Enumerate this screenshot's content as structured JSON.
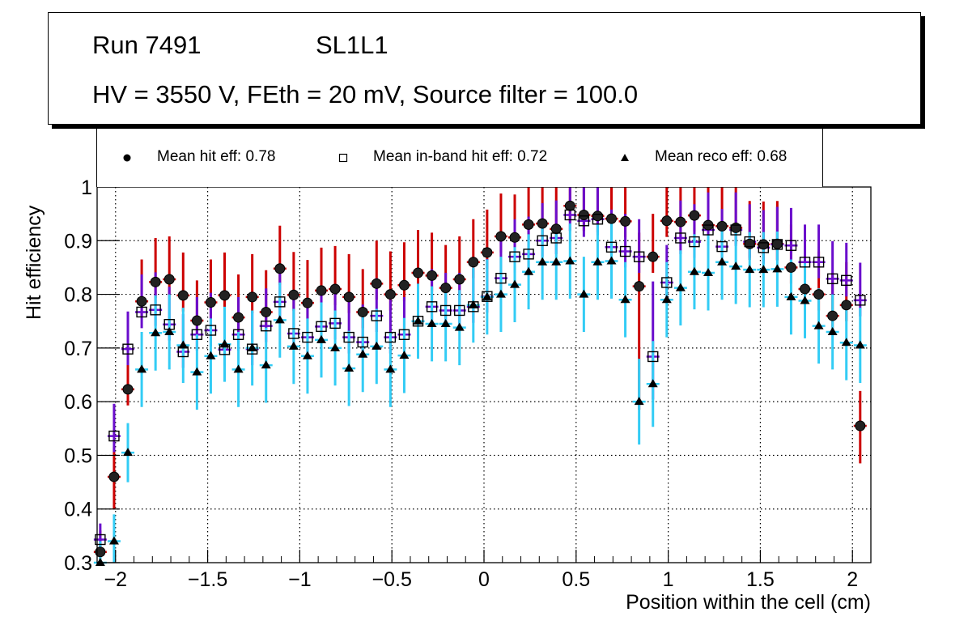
{
  "header": {
    "run": "Run 7491",
    "layer": "SL1L1",
    "conditions": "HV = 3550 V, FEth = 20 mV, Source filter = 100.0"
  },
  "legend": {
    "items": [
      {
        "label": "Mean hit  eff: 0.78",
        "marker": "filled-circle"
      },
      {
        "label": "Mean in-band hit eff: 0.72",
        "marker": "open-square"
      },
      {
        "label": "Mean reco eff: 0.68",
        "marker": "filled-triangle"
      }
    ]
  },
  "colors": {
    "hit_err": "#cc0000",
    "inband_err": "#6a0dcc",
    "reco_err": "#33ccf5",
    "marker": "#000000"
  },
  "chart_data": {
    "type": "scatter",
    "title": "",
    "xlabel": "Position within the cell (cm)",
    "ylabel": "Hit efficiency",
    "xlim": [
      -2.1,
      2.1
    ],
    "ylim": [
      0.3,
      1.0
    ],
    "grid": true,
    "legend_position": "top",
    "xticks": [
      "−2",
      "−1.5",
      "−1",
      "−0.5",
      "0",
      "0.5",
      "1",
      "1.5",
      "2"
    ],
    "xtick_values": [
      -2,
      -1.5,
      -1,
      -0.5,
      0,
      0.5,
      1,
      1.5,
      2
    ],
    "yticks": [
      "0.3",
      "0.4",
      "0.5",
      "0.6",
      "0.7",
      "0.8",
      "0.9",
      "1"
    ],
    "ytick_values": [
      0.3,
      0.4,
      0.5,
      0.6,
      0.7,
      0.8,
      0.9,
      1.0
    ],
    "x": [
      -2.083,
      -2.008,
      -1.933,
      -1.858,
      -1.783,
      -1.708,
      -1.633,
      -1.558,
      -1.483,
      -1.408,
      -1.333,
      -1.258,
      -1.183,
      -1.108,
      -1.033,
      -0.958,
      -0.883,
      -0.808,
      -0.733,
      -0.658,
      -0.583,
      -0.508,
      -0.433,
      -0.358,
      -0.283,
      -0.208,
      -0.133,
      -0.058,
      0.017,
      0.092,
      0.167,
      0.242,
      0.317,
      0.392,
      0.467,
      0.542,
      0.617,
      0.692,
      0.767,
      0.842,
      0.917,
      0.992,
      1.067,
      1.142,
      1.217,
      1.292,
      1.367,
      1.442,
      1.517,
      1.592,
      1.667,
      1.742,
      1.817,
      1.892,
      1.967,
      2.042
    ],
    "series": [
      {
        "name": "Mean hit  eff: 0.78",
        "marker": "filled-circle",
        "values": [
          0.32,
          0.46,
          0.623,
          0.787,
          0.823,
          0.828,
          0.798,
          0.751,
          0.785,
          0.798,
          0.757,
          0.795,
          0.767,
          0.848,
          0.799,
          0.784,
          0.807,
          0.81,
          0.795,
          0.767,
          0.82,
          0.8,
          0.817,
          0.84,
          0.835,
          0.812,
          0.828,
          0.86,
          0.878,
          0.908,
          0.906,
          0.93,
          0.932,
          0.922,
          0.965,
          0.948,
          0.946,
          0.941,
          0.936,
          0.815,
          0.87,
          0.937,
          0.935,
          0.947,
          0.929,
          0.927,
          0.924,
          0.894,
          0.893,
          0.894,
          0.85,
          0.81,
          0.8,
          0.76,
          0.78,
          0.555
        ],
        "err_low": [
          0.03,
          0.06,
          0.03,
          0.03,
          0.03,
          0.03,
          0.03,
          0.03,
          0.03,
          0.03,
          0.03,
          0.03,
          0.03,
          0.03,
          0.03,
          0.03,
          0.03,
          0.03,
          0.03,
          0.03,
          0.03,
          0.03,
          0.03,
          0.03,
          0.03,
          0.03,
          0.03,
          0.03,
          0.03,
          0.03,
          0.03,
          0.03,
          0.03,
          0.03,
          0.03,
          0.03,
          0.03,
          0.03,
          0.03,
          0.23,
          0.03,
          0.03,
          0.03,
          0.03,
          0.03,
          0.03,
          0.03,
          0.03,
          0.03,
          0.03,
          0.03,
          0.03,
          0.03,
          0.03,
          0.03,
          0.07
        ],
        "err_high": [
          0.04,
          0.055,
          0.06,
          0.078,
          0.082,
          0.08,
          0.08,
          0.075,
          0.08,
          0.08,
          0.08,
          0.08,
          0.078,
          0.08,
          0.08,
          0.08,
          0.08,
          0.08,
          0.08,
          0.08,
          0.08,
          0.08,
          0.08,
          0.08,
          0.08,
          0.08,
          0.08,
          0.08,
          0.08,
          0.08,
          0.08,
          0.08,
          0.08,
          0.08,
          0.08,
          0.08,
          0.08,
          0.08,
          0.08,
          0.1,
          0.08,
          0.08,
          0.08,
          0.08,
          0.08,
          0.08,
          0.08,
          0.08,
          0.08,
          0.08,
          0.08,
          0.08,
          0.08,
          0.08,
          0.08,
          0.065
        ]
      },
      {
        "name": "Mean in-band hit eff: 0.72",
        "marker": "open-square",
        "values": [
          0.343,
          0.536,
          0.698,
          0.767,
          0.771,
          0.744,
          0.693,
          0.725,
          0.733,
          0.697,
          0.725,
          0.698,
          0.741,
          0.786,
          0.727,
          0.72,
          0.74,
          0.746,
          0.72,
          0.711,
          0.76,
          0.72,
          0.725,
          0.75,
          0.777,
          0.77,
          0.77,
          0.777,
          0.796,
          0.83,
          0.87,
          0.875,
          0.9,
          0.905,
          0.948,
          0.937,
          0.94,
          0.888,
          0.88,
          0.87,
          0.684,
          0.822,
          0.905,
          0.898,
          0.92,
          0.889,
          0.92,
          0.898,
          0.887,
          0.893,
          0.891,
          0.86,
          0.86,
          0.829,
          0.826,
          0.789
        ],
        "err_low": [
          0.03,
          0.03,
          0.03,
          0.03,
          0.03,
          0.03,
          0.03,
          0.03,
          0.03,
          0.03,
          0.03,
          0.03,
          0.03,
          0.03,
          0.03,
          0.03,
          0.03,
          0.03,
          0.03,
          0.03,
          0.03,
          0.03,
          0.03,
          0.03,
          0.03,
          0.03,
          0.03,
          0.03,
          0.03,
          0.03,
          0.03,
          0.03,
          0.03,
          0.03,
          0.03,
          0.03,
          0.03,
          0.03,
          0.03,
          0.03,
          0.08,
          0.03,
          0.03,
          0.03,
          0.03,
          0.03,
          0.03,
          0.03,
          0.03,
          0.03,
          0.03,
          0.03,
          0.03,
          0.03,
          0.03,
          0.03
        ],
        "err_high": [
          0.03,
          0.06,
          0.07,
          0.07,
          0.07,
          0.07,
          0.07,
          0.07,
          0.07,
          0.07,
          0.07,
          0.07,
          0.07,
          0.07,
          0.07,
          0.07,
          0.07,
          0.07,
          0.07,
          0.07,
          0.07,
          0.07,
          0.07,
          0.07,
          0.07,
          0.07,
          0.07,
          0.07,
          0.07,
          0.07,
          0.07,
          0.07,
          0.07,
          0.07,
          0.07,
          0.07,
          0.07,
          0.07,
          0.07,
          0.07,
          0.14,
          0.07,
          0.07,
          0.07,
          0.07,
          0.07,
          0.07,
          0.07,
          0.07,
          0.07,
          0.07,
          0.07,
          0.07,
          0.07,
          0.07,
          0.07
        ]
      },
      {
        "name": "Mean reco eff: 0.68",
        "marker": "filled-triangle",
        "values": [
          0.3,
          0.34,
          0.505,
          0.66,
          0.728,
          0.73,
          0.705,
          0.655,
          0.685,
          0.707,
          0.66,
          0.7,
          0.668,
          0.752,
          0.703,
          0.685,
          0.715,
          0.7,
          0.662,
          0.688,
          0.703,
          0.66,
          0.686,
          0.75,
          0.745,
          0.745,
          0.738,
          0.78,
          0.795,
          0.8,
          0.818,
          0.842,
          0.86,
          0.86,
          0.862,
          0.8,
          0.86,
          0.862,
          0.79,
          0.6,
          0.633,
          0.79,
          0.812,
          0.842,
          0.84,
          0.86,
          0.852,
          0.846,
          0.846,
          0.847,
          0.795,
          0.788,
          0.741,
          0.73,
          0.71,
          0.705
        ],
        "err_low": [
          0.0,
          0.06,
          0.055,
          0.07,
          0.07,
          0.07,
          0.07,
          0.07,
          0.07,
          0.07,
          0.07,
          0.07,
          0.07,
          0.07,
          0.07,
          0.07,
          0.07,
          0.07,
          0.07,
          0.07,
          0.07,
          0.07,
          0.07,
          0.07,
          0.07,
          0.07,
          0.07,
          0.07,
          0.07,
          0.07,
          0.07,
          0.07,
          0.07,
          0.07,
          0.07,
          0.07,
          0.07,
          0.07,
          0.07,
          0.08,
          0.08,
          0.07,
          0.07,
          0.07,
          0.07,
          0.07,
          0.07,
          0.07,
          0.07,
          0.07,
          0.07,
          0.07,
          0.07,
          0.07,
          0.07,
          0.07
        ],
        "err_high": [
          0.04,
          0.05,
          0.055,
          0.07,
          0.07,
          0.07,
          0.07,
          0.07,
          0.07,
          0.07,
          0.07,
          0.07,
          0.07,
          0.07,
          0.07,
          0.07,
          0.07,
          0.07,
          0.07,
          0.07,
          0.07,
          0.07,
          0.07,
          0.07,
          0.07,
          0.07,
          0.07,
          0.07,
          0.07,
          0.07,
          0.07,
          0.07,
          0.07,
          0.07,
          0.07,
          0.07,
          0.07,
          0.07,
          0.07,
          0.08,
          0.08,
          0.07,
          0.07,
          0.07,
          0.07,
          0.07,
          0.07,
          0.07,
          0.07,
          0.07,
          0.07,
          0.07,
          0.07,
          0.07,
          0.07,
          0.07
        ]
      }
    ]
  }
}
